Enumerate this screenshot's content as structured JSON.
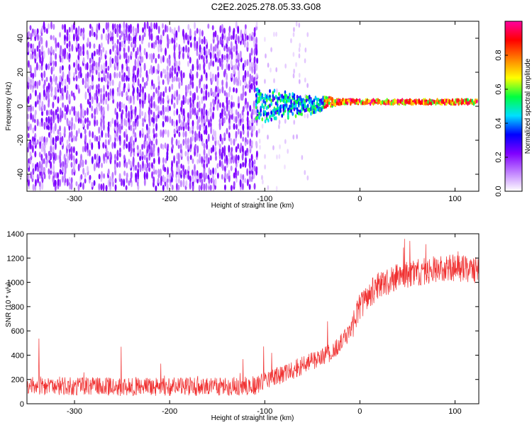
{
  "page": {
    "title": "C2E2.2025.278.05.33.G08"
  },
  "chart_data": [
    {
      "id": "spectrogram",
      "type": "heatmap",
      "title": "C2E2.2025.278.05.33.G08",
      "xlabel": "Height of straight line (km)",
      "ylabel": "Frequency (Hz)",
      "xlim": [
        -350,
        125
      ],
      "ylim": [
        -50,
        50
      ],
      "xticks": [
        -300,
        -200,
        -100,
        0,
        100
      ],
      "yticks": [
        -40,
        -20,
        0,
        20,
        40
      ],
      "colorbar": {
        "label": "Normalized spectral amplitude",
        "range": [
          0,
          1
        ],
        "ticks": [
          "0.0",
          "0.2",
          "0.4",
          "0.6",
          "0.8"
        ],
        "colors": [
          "#ffffff",
          "#c080ff",
          "#8000ff",
          "#0000ff",
          "#00e0ff",
          "#00ff40",
          "#ffff00",
          "#ff8000",
          "#ff0000",
          "#ff00a0"
        ]
      },
      "regions": [
        {
          "name": "noise",
          "x_range": [
            -350,
            -110
          ],
          "freq_range": [
            -50,
            50
          ],
          "amplitude": 0.12
        },
        {
          "name": "sparse-noise",
          "x_range": [
            -110,
            -55
          ],
          "freq_range": [
            -50,
            50
          ],
          "amplitude": 0.05
        },
        {
          "name": "signal-band",
          "x_range": [
            -110,
            125
          ],
          "center_freq": 1.5,
          "amplitude": 0.85
        }
      ]
    },
    {
      "id": "snr",
      "type": "line",
      "xlabel": "Height of straight line (km)",
      "ylabel": "SNR (10 * v/v)",
      "xlim": [
        -350,
        125
      ],
      "ylim": [
        0,
        1400
      ],
      "xticks": [
        -300,
        -200,
        -100,
        0,
        100
      ],
      "yticks": [
        0,
        200,
        400,
        600,
        800,
        1000,
        1200,
        1400
      ],
      "series": [
        {
          "name": "SNR",
          "color": "#f03030",
          "x": [
            -350,
            -300,
            -250,
            -200,
            -150,
            -110,
            -90,
            -70,
            -50,
            -30,
            -20,
            -10,
            0,
            10,
            20,
            30,
            40,
            60,
            80,
            100,
            125
          ],
          "values": [
            150,
            145,
            140,
            140,
            140,
            150,
            220,
            280,
            350,
            420,
            500,
            600,
            800,
            900,
            980,
            1000,
            1050,
            1080,
            1100,
            1120,
            1100
          ],
          "noise_amplitude": 70
        }
      ]
    }
  ]
}
